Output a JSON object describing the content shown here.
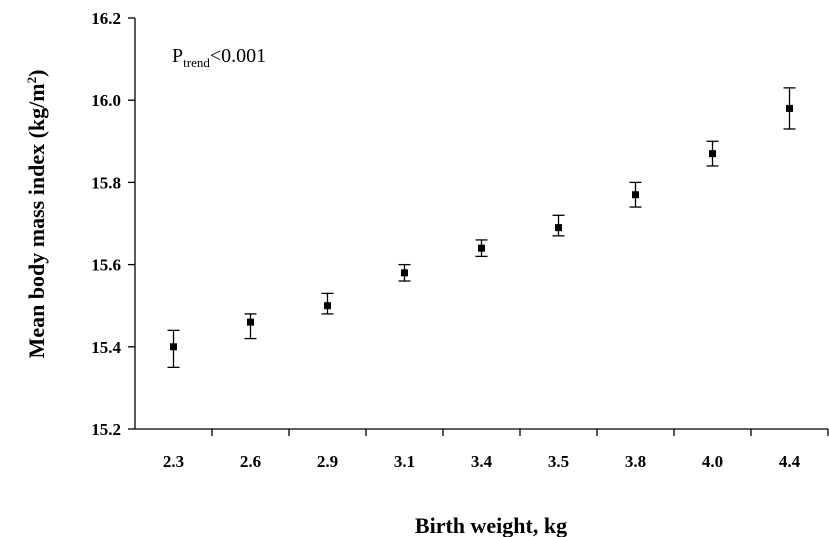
{
  "chart_data": {
    "type": "scatter",
    "xlabel": "Birth weight, kg",
    "ylabel_main": "Mean body mass index (kg/m",
    "ylabel_sup": "2",
    "ylabel_close": ")",
    "annotation": {
      "main": "P",
      "sub": "trend",
      "rest": "<0.001"
    },
    "categories": [
      "2.3",
      "2.6",
      "2.9",
      "3.1",
      "3.4",
      "3.5",
      "3.8",
      "4.0",
      "4.4"
    ],
    "values": [
      15.4,
      15.46,
      15.5,
      15.58,
      15.64,
      15.69,
      15.77,
      15.87,
      15.98
    ],
    "error_upper": [
      15.44,
      15.48,
      15.53,
      15.6,
      15.66,
      15.72,
      15.8,
      15.9,
      16.03
    ],
    "error_lower": [
      15.35,
      15.42,
      15.48,
      15.56,
      15.62,
      15.67,
      15.74,
      15.84,
      15.93
    ],
    "ylim": [
      15.2,
      16.2
    ],
    "yticks": [
      "15.2",
      "15.4",
      "15.6",
      "15.8",
      "16.0",
      "16.2"
    ],
    "grid": false,
    "legend": "none"
  }
}
